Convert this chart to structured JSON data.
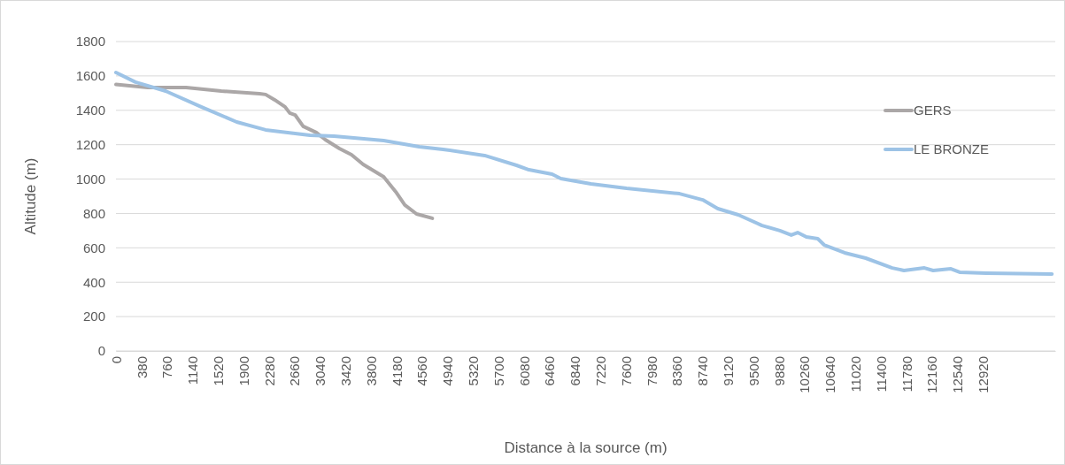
{
  "chart_data": {
    "type": "line",
    "xlabel": "Distance à la source (m)",
    "ylabel": "Altitude (m)",
    "xlim": [
      0,
      14000
    ],
    "xticks": [
      0,
      380,
      760,
      1140,
      1520,
      1900,
      2280,
      2660,
      3040,
      3420,
      3800,
      4180,
      4560,
      4940,
      5320,
      5700,
      6080,
      6460,
      6840,
      7220,
      7600,
      7980,
      8360,
      8740,
      9120,
      9500,
      9880,
      10260,
      10640,
      11020,
      11400,
      11780,
      12160,
      12540,
      12920
    ],
    "ylim": [
      0,
      1800
    ],
    "yticks": [
      0,
      200,
      400,
      600,
      800,
      1000,
      1200,
      1400,
      1600,
      1800
    ],
    "grid": "y",
    "legend": "right",
    "marker": "none",
    "line_style": "solid",
    "series": [
      {
        "name": "GERS",
        "color": "#aba7a7",
        "x": [
          0,
          475,
          1045,
          1570,
          2140,
          2230,
          2365,
          2520,
          2590,
          2670,
          2790,
          2985,
          3120,
          3330,
          3510,
          3685,
          3990,
          4170,
          4305,
          4480,
          4715
        ],
        "values": [
          1550,
          1533,
          1533,
          1512,
          1497,
          1492,
          1461,
          1420,
          1384,
          1373,
          1307,
          1271,
          1229,
          1178,
          1142,
          1085,
          1013,
          926,
          849,
          797,
          772
        ]
      },
      {
        "name": "LE BRONZE",
        "color": "#9dc3e6",
        "x": [
          0,
          290,
          740,
          1270,
          1800,
          2230,
          2890,
          3250,
          3990,
          4520,
          4875,
          5495,
          5970,
          6155,
          6500,
          6630,
          7080,
          7610,
          8400,
          8745,
          8970,
          9275,
          9630,
          9895,
          10065,
          10160,
          10290,
          10460,
          10555,
          10860,
          11175,
          11570,
          11745,
          12050,
          12180,
          12445,
          12575,
          12970,
          13950
        ],
        "values": [
          1620,
          1564,
          1512,
          1420,
          1332,
          1286,
          1255,
          1250,
          1224,
          1188,
          1173,
          1137,
          1080,
          1054,
          1029,
          1003,
          972,
          946,
          915,
          879,
          828,
          792,
          730,
          700,
          674,
          689,
          663,
          653,
          617,
          571,
          540,
          483,
          468,
          483,
          468,
          478,
          458,
          453,
          448
        ]
      }
    ]
  }
}
